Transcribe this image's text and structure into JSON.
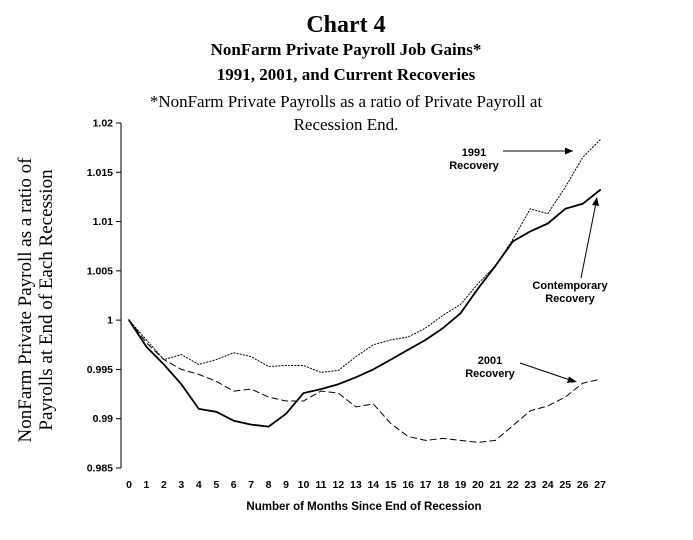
{
  "chart_data": {
    "type": "line",
    "title": "Chart 4",
    "subtitle_lines": [
      "NonFarm Private Payroll Job Gains*",
      "1991, 2001, and Current Recoveries"
    ],
    "note_lines": [
      "*NonFarm Private Payrolls as a ratio of Private Payroll at",
      "Recession End."
    ],
    "xlabel": "Number of Months Since End of Recession",
    "ylabel_lines": [
      "NonFarm Private Payroll as a ratio of",
      "Payrolls at End of Each Recession"
    ],
    "x": [
      0,
      1,
      2,
      3,
      4,
      5,
      6,
      7,
      8,
      9,
      10,
      11,
      12,
      13,
      14,
      15,
      16,
      17,
      18,
      19,
      20,
      21,
      22,
      23,
      24,
      25,
      26,
      27
    ],
    "ylim": [
      0.985,
      1.02
    ],
    "ytick_values": [
      0.985,
      0.99,
      0.995,
      1,
      1.005,
      1.01,
      1.015,
      1.02
    ],
    "ytick_labels": [
      "0.985",
      "0.99",
      "0.995",
      "1",
      "1.005",
      "1.01",
      "1.015",
      "1.02"
    ],
    "grid": false,
    "series": [
      {
        "name": "1991 Recovery",
        "style": "dotted",
        "values": [
          1.0,
          0.998,
          0.996,
          0.9965,
          0.9955,
          0.996,
          0.9967,
          0.9963,
          0.9953,
          0.9954,
          0.9954,
          0.9947,
          0.9949,
          0.9963,
          0.9975,
          0.998,
          0.9983,
          0.9992,
          1.0005,
          1.0016,
          1.0037,
          1.0055,
          1.0082,
          1.0113,
          1.0108,
          1.0135,
          1.0165,
          1.0183
        ]
      },
      {
        "name": "Contemporary Recovery",
        "style": "solid",
        "values": [
          1.0,
          0.9973,
          0.9955,
          0.9935,
          0.991,
          0.9907,
          0.9898,
          0.9894,
          0.9892,
          0.9905,
          0.9926,
          0.993,
          0.9935,
          0.9942,
          0.995,
          0.996,
          0.997,
          0.998,
          0.9992,
          1.0007,
          1.0032,
          1.0055,
          1.008,
          1.009,
          1.0098,
          1.0113,
          1.0118,
          1.0132
        ]
      },
      {
        "name": "2001 Recovery",
        "style": "dashed",
        "values": [
          1.0,
          0.9977,
          0.996,
          0.995,
          0.9945,
          0.9938,
          0.9928,
          0.993,
          0.9922,
          0.9918,
          0.9918,
          0.9928,
          0.9926,
          0.9912,
          0.9915,
          0.9895,
          0.9882,
          0.9878,
          0.988,
          0.9878,
          0.9876,
          0.9878,
          0.9893,
          0.9908,
          0.9913,
          0.9922,
          0.9936,
          0.994
        ]
      }
    ],
    "annotations": [
      {
        "series": 0,
        "lines": [
          "1991",
          "Recovery"
        ]
      },
      {
        "series": 1,
        "lines": [
          "Contemporary",
          "Recovery"
        ]
      },
      {
        "series": 2,
        "lines": [
          "2001",
          "Recovery"
        ]
      }
    ]
  }
}
